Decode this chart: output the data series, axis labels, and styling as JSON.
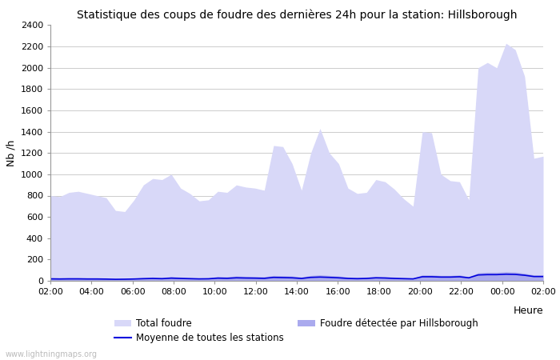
{
  "title": "Statistique des coups de foudre des dernières 24h pour la station: Hillsborough",
  "xlabel": "Heure",
  "ylabel": "Nb /h",
  "watermark": "www.lightningmaps.org",
  "ylim": [
    0,
    2400
  ],
  "yticks": [
    0,
    200,
    400,
    600,
    800,
    1000,
    1200,
    1400,
    1600,
    1800,
    2000,
    2200,
    2400
  ],
  "xtick_labels": [
    "02:00",
    "04:00",
    "06:00",
    "08:00",
    "10:00",
    "12:00",
    "14:00",
    "16:00",
    "18:00",
    "20:00",
    "22:00",
    "00:00",
    "02:00"
  ],
  "color_total": "#d8d8f8",
  "color_hillsborough": "#aaaaee",
  "color_mean": "#0000dd",
  "bg_color": "#ffffff",
  "grid_color": "#cccccc",
  "total_foudre": [
    800,
    790,
    830,
    840,
    820,
    800,
    780,
    660,
    650,
    760,
    900,
    960,
    950,
    1000,
    870,
    820,
    750,
    760,
    840,
    830,
    900,
    880,
    870,
    850,
    1270,
    1260,
    1100,
    850,
    1200,
    1430,
    1200,
    1100,
    870,
    820,
    830,
    950,
    930,
    860,
    770,
    700,
    1400,
    1390,
    1000,
    940,
    930,
    760,
    2000,
    2050,
    2000,
    2230,
    2170,
    1920,
    1150,
    1170
  ],
  "foudre_hillsborough": [
    30,
    28,
    30,
    30,
    28,
    28,
    27,
    20,
    22,
    25,
    30,
    35,
    30,
    40,
    35,
    30,
    25,
    27,
    40,
    38,
    45,
    42,
    40,
    38,
    50,
    48,
    45,
    35,
    50,
    55,
    50,
    45,
    35,
    32,
    35,
    40,
    38,
    35,
    30,
    25,
    55,
    55,
    50,
    50,
    55,
    38,
    75,
    80,
    80,
    85,
    82,
    70,
    55,
    55
  ],
  "mean_stations": [
    18,
    17,
    18,
    18,
    17,
    17,
    16,
    14,
    15,
    17,
    20,
    22,
    20,
    25,
    22,
    20,
    18,
    19,
    25,
    23,
    28,
    26,
    25,
    23,
    32,
    30,
    28,
    22,
    32,
    35,
    32,
    28,
    22,
    20,
    22,
    28,
    26,
    22,
    20,
    18,
    38,
    38,
    35,
    35,
    38,
    28,
    55,
    58,
    58,
    62,
    60,
    52,
    40,
    40
  ]
}
